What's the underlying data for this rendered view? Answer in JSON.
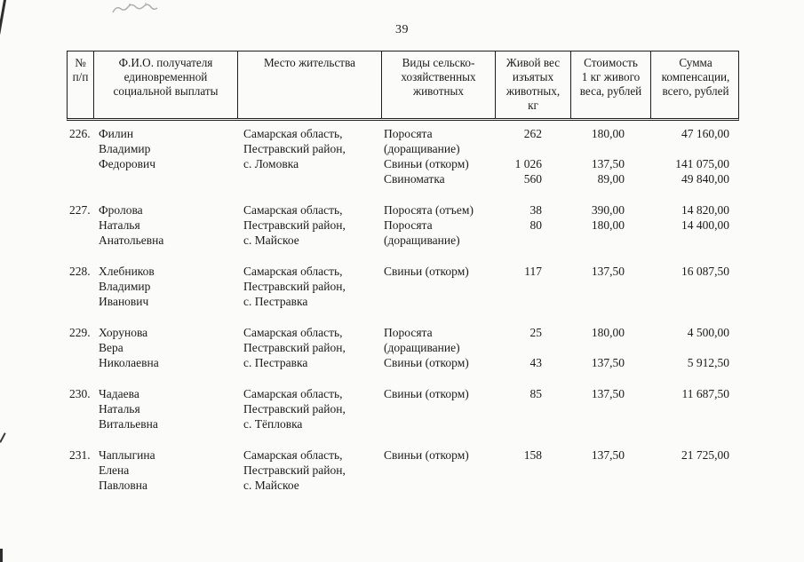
{
  "page_number": "39",
  "table": {
    "headers": [
      "№\nп/п",
      "Ф.И.О. получателя\nединовременной\nсоциальной выплаты",
      "Место жительства",
      "Виды сельско-\nхозяйственных\nживотных",
      "Живой вес\nизъятых\nживотных,\nкг",
      "Стоимость\n1 кг живого\nвеса, рублей",
      "Сумма\nкомпенсации,\nвсего, рублей"
    ],
    "rows": [
      {
        "num": "226.",
        "name": "Филин\nВладимир\nФедорович",
        "residence": "Самарская область,\nПестравский район,\nс. Ломовка",
        "animals": [
          {
            "type": "Поросята\n(доращивание)",
            "weight": "262",
            "price": "180,00",
            "sum": "47 160,00"
          },
          {
            "type": "Свиньи (откорм)",
            "weight": "1 026",
            "price": "137,50",
            "sum": "141 075,00"
          },
          {
            "type": "Свиноматка",
            "weight": "560",
            "price": "89,00",
            "sum": "49 840,00"
          }
        ]
      },
      {
        "num": "227.",
        "name": "Фролова\nНаталья\nАнатольевна",
        "residence": "Самарская область,\nПестравский район,\nс. Майское",
        "animals": [
          {
            "type": "Поросята (отъем)",
            "weight": "38",
            "price": "390,00",
            "sum": "14 820,00"
          },
          {
            "type": "Поросята\n(доращивание)",
            "weight": "80",
            "price": "180,00",
            "sum": "14 400,00"
          }
        ]
      },
      {
        "num": "228.",
        "name": "Хлебников\nВладимир\nИванович",
        "residence": "Самарская область,\nПестравский район,\nс. Пестравка",
        "animals": [
          {
            "type": "Свиньи (откорм)",
            "weight": "117",
            "price": "137,50",
            "sum": "16 087,50"
          }
        ]
      },
      {
        "num": "229.",
        "name": "Хорунова\nВера\nНиколаевна",
        "residence": "Самарская область,\nПестравский район,\nс. Пестравка",
        "animals": [
          {
            "type": "Поросята\n(доращивание)",
            "weight": "25",
            "price": "180,00",
            "sum": "4 500,00"
          },
          {
            "type": "Свиньи (откорм)",
            "weight": "43",
            "price": "137,50",
            "sum": "5 912,50"
          }
        ]
      },
      {
        "num": "230.",
        "name": "Чадаева\nНаталья\nВитальевна",
        "residence": "Самарская область,\nПестравский район,\nс. Тёпловка",
        "animals": [
          {
            "type": "Свиньи (откорм)",
            "weight": "85",
            "price": "137,50",
            "sum": "11 687,50"
          }
        ]
      },
      {
        "num": "231.",
        "name": "Чаплыгина\nЕлена\nПавловна",
        "residence": "Самарская область,\nПестравский район,\nс. Майское",
        "animals": [
          {
            "type": "Свиньи (откорм)",
            "weight": "158",
            "price": "137,50",
            "sum": "21 725,00"
          }
        ]
      }
    ]
  }
}
